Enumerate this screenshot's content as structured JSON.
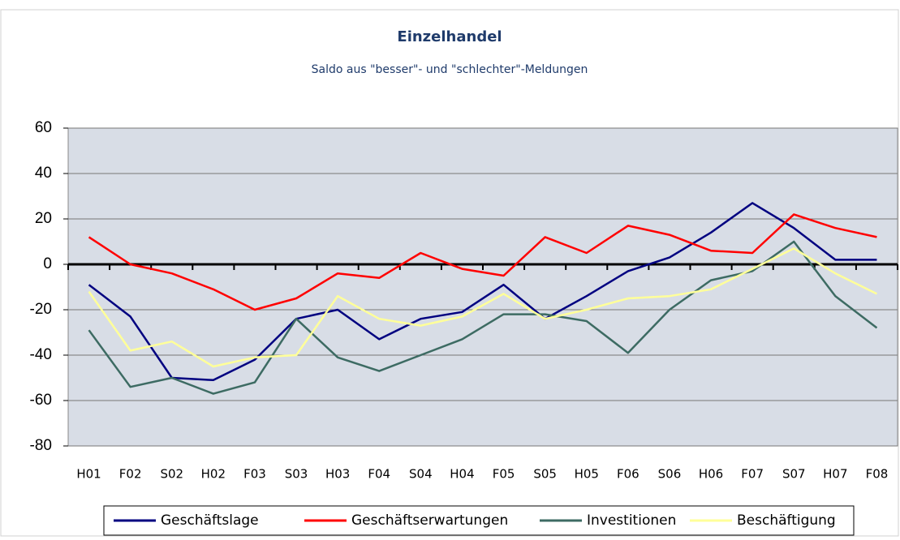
{
  "chart_data": {
    "type": "line",
    "title": "Einzelhandel",
    "subtitle": "Saldo aus \"besser\"- und \"schlechter\"-Meldungen",
    "categories": [
      "H01",
      "F02",
      "S02",
      "H02",
      "F03",
      "S03",
      "H03",
      "F04",
      "S04",
      "H04",
      "F05",
      "S05",
      "H05",
      "F06",
      "S06",
      "H06",
      "F07",
      "S07",
      "H07",
      "F08"
    ],
    "series": [
      {
        "name": "Geschäftslage",
        "color": "#000080",
        "values": [
          -9,
          -23,
          -50,
          -51,
          -42,
          -24,
          -20,
          -33,
          -24,
          -21,
          -9,
          -24,
          -14,
          -3,
          3,
          14,
          27,
          16,
          2,
          2
        ]
      },
      {
        "name": "Geschäftserwartungen",
        "color": "#ff0000",
        "values": [
          12,
          0,
          -4,
          -11,
          -20,
          -15,
          -4,
          -6,
          5,
          -2,
          -5,
          12,
          5,
          17,
          13,
          6,
          5,
          22,
          16,
          12
        ]
      },
      {
        "name": "Investitionen",
        "color": "#3d6b63",
        "values": [
          -29,
          -54,
          -50,
          -57,
          -52,
          -24,
          -41,
          -47,
          -40,
          -33,
          -22,
          -22,
          -25,
          -39,
          -20,
          -7,
          -3,
          10,
          -14,
          -28
        ]
      },
      {
        "name": "Beschäftigung",
        "color": "#ffff99",
        "values": [
          -12,
          -38,
          -34,
          -45,
          -41,
          -40,
          -14,
          -24,
          -27,
          -23,
          -13,
          -24,
          -20,
          -15,
          -14,
          -11,
          -2,
          7,
          -4,
          -13
        ]
      }
    ],
    "ylim": [
      -80,
      60
    ],
    "yticks": [
      -80,
      -60,
      -40,
      -20,
      0,
      20,
      40,
      60
    ],
    "grid": true,
    "legend": "bottom"
  }
}
